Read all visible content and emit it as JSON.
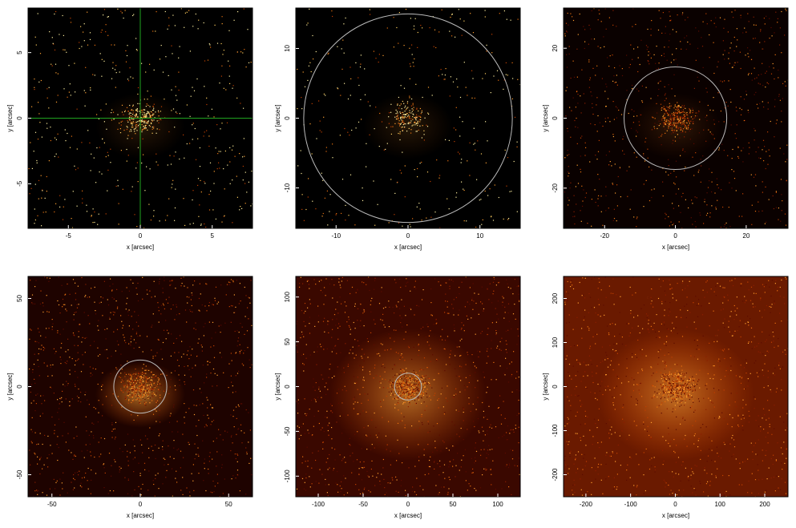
{
  "chart_data": [
    {
      "type": "image",
      "xlabel": "x [arcsec]",
      "ylabel": "y [arcsec]",
      "xlim": [
        -7.8,
        7.8
      ],
      "ylim": [
        -8.4,
        8.4
      ],
      "xticks": [
        -5,
        0,
        5
      ],
      "yticks": [
        -5,
        0,
        5
      ],
      "crosshair": {
        "x": 0,
        "y": 0,
        "color": "#1fa31f"
      }
    },
    {
      "type": "image",
      "xlabel": "x [arcsec]",
      "ylabel": "y [arcsec]",
      "xlim": [
        -15.6,
        15.6
      ],
      "ylim": [
        -15.8,
        15.8
      ],
      "xticks": [
        -10,
        0,
        10
      ],
      "yticks": [
        -10,
        0,
        10
      ],
      "circle": {
        "x": 0,
        "y": 0,
        "r": 14.5,
        "color": "#bbbbbb"
      }
    },
    {
      "type": "image",
      "xlabel": "x [arcsec]",
      "ylabel": "y [arcsec]",
      "xlim": [
        -31.6,
        31.8
      ],
      "ylim": [
        -31.5,
        31.5
      ],
      "xticks": [
        -20,
        0,
        20
      ],
      "yticks": [
        -20,
        0,
        20
      ],
      "circle": {
        "x": 0,
        "y": 0,
        "r": 14.5,
        "color": "#bbbbbb"
      }
    },
    {
      "type": "image",
      "xlabel": "x [arcsec]",
      "ylabel": "y [arcsec]",
      "xlim": [
        -63.5,
        63.5
      ],
      "ylim": [
        -62.5,
        62.5
      ],
      "xticks": [
        -50,
        0,
        50
      ],
      "yticks": [
        -50,
        0,
        50
      ],
      "circle": {
        "x": 0,
        "y": 0,
        "r": 15,
        "color": "#bbbbbb"
      }
    },
    {
      "type": "image",
      "xlabel": "x [arcsec]",
      "ylabel": "y [arcsec]",
      "xlim": [
        -125,
        125
      ],
      "ylim": [
        -123,
        123
      ],
      "xticks": [
        -100,
        -50,
        0,
        50,
        100
      ],
      "yticks": [
        -100,
        -50,
        0,
        50,
        100
      ],
      "circle": {
        "x": 0,
        "y": 0,
        "r": 15,
        "color": "#bbbbbb"
      }
    },
    {
      "type": "image",
      "xlabel": "x [arcsec]",
      "ylabel": "y [arcsec]",
      "xlim": [
        -250,
        252
      ],
      "ylim": [
        -250,
        250
      ],
      "xticks": [
        -200,
        -100,
        0,
        100,
        200
      ],
      "yticks": [
        -200,
        -100,
        0,
        100,
        200
      ]
    }
  ]
}
